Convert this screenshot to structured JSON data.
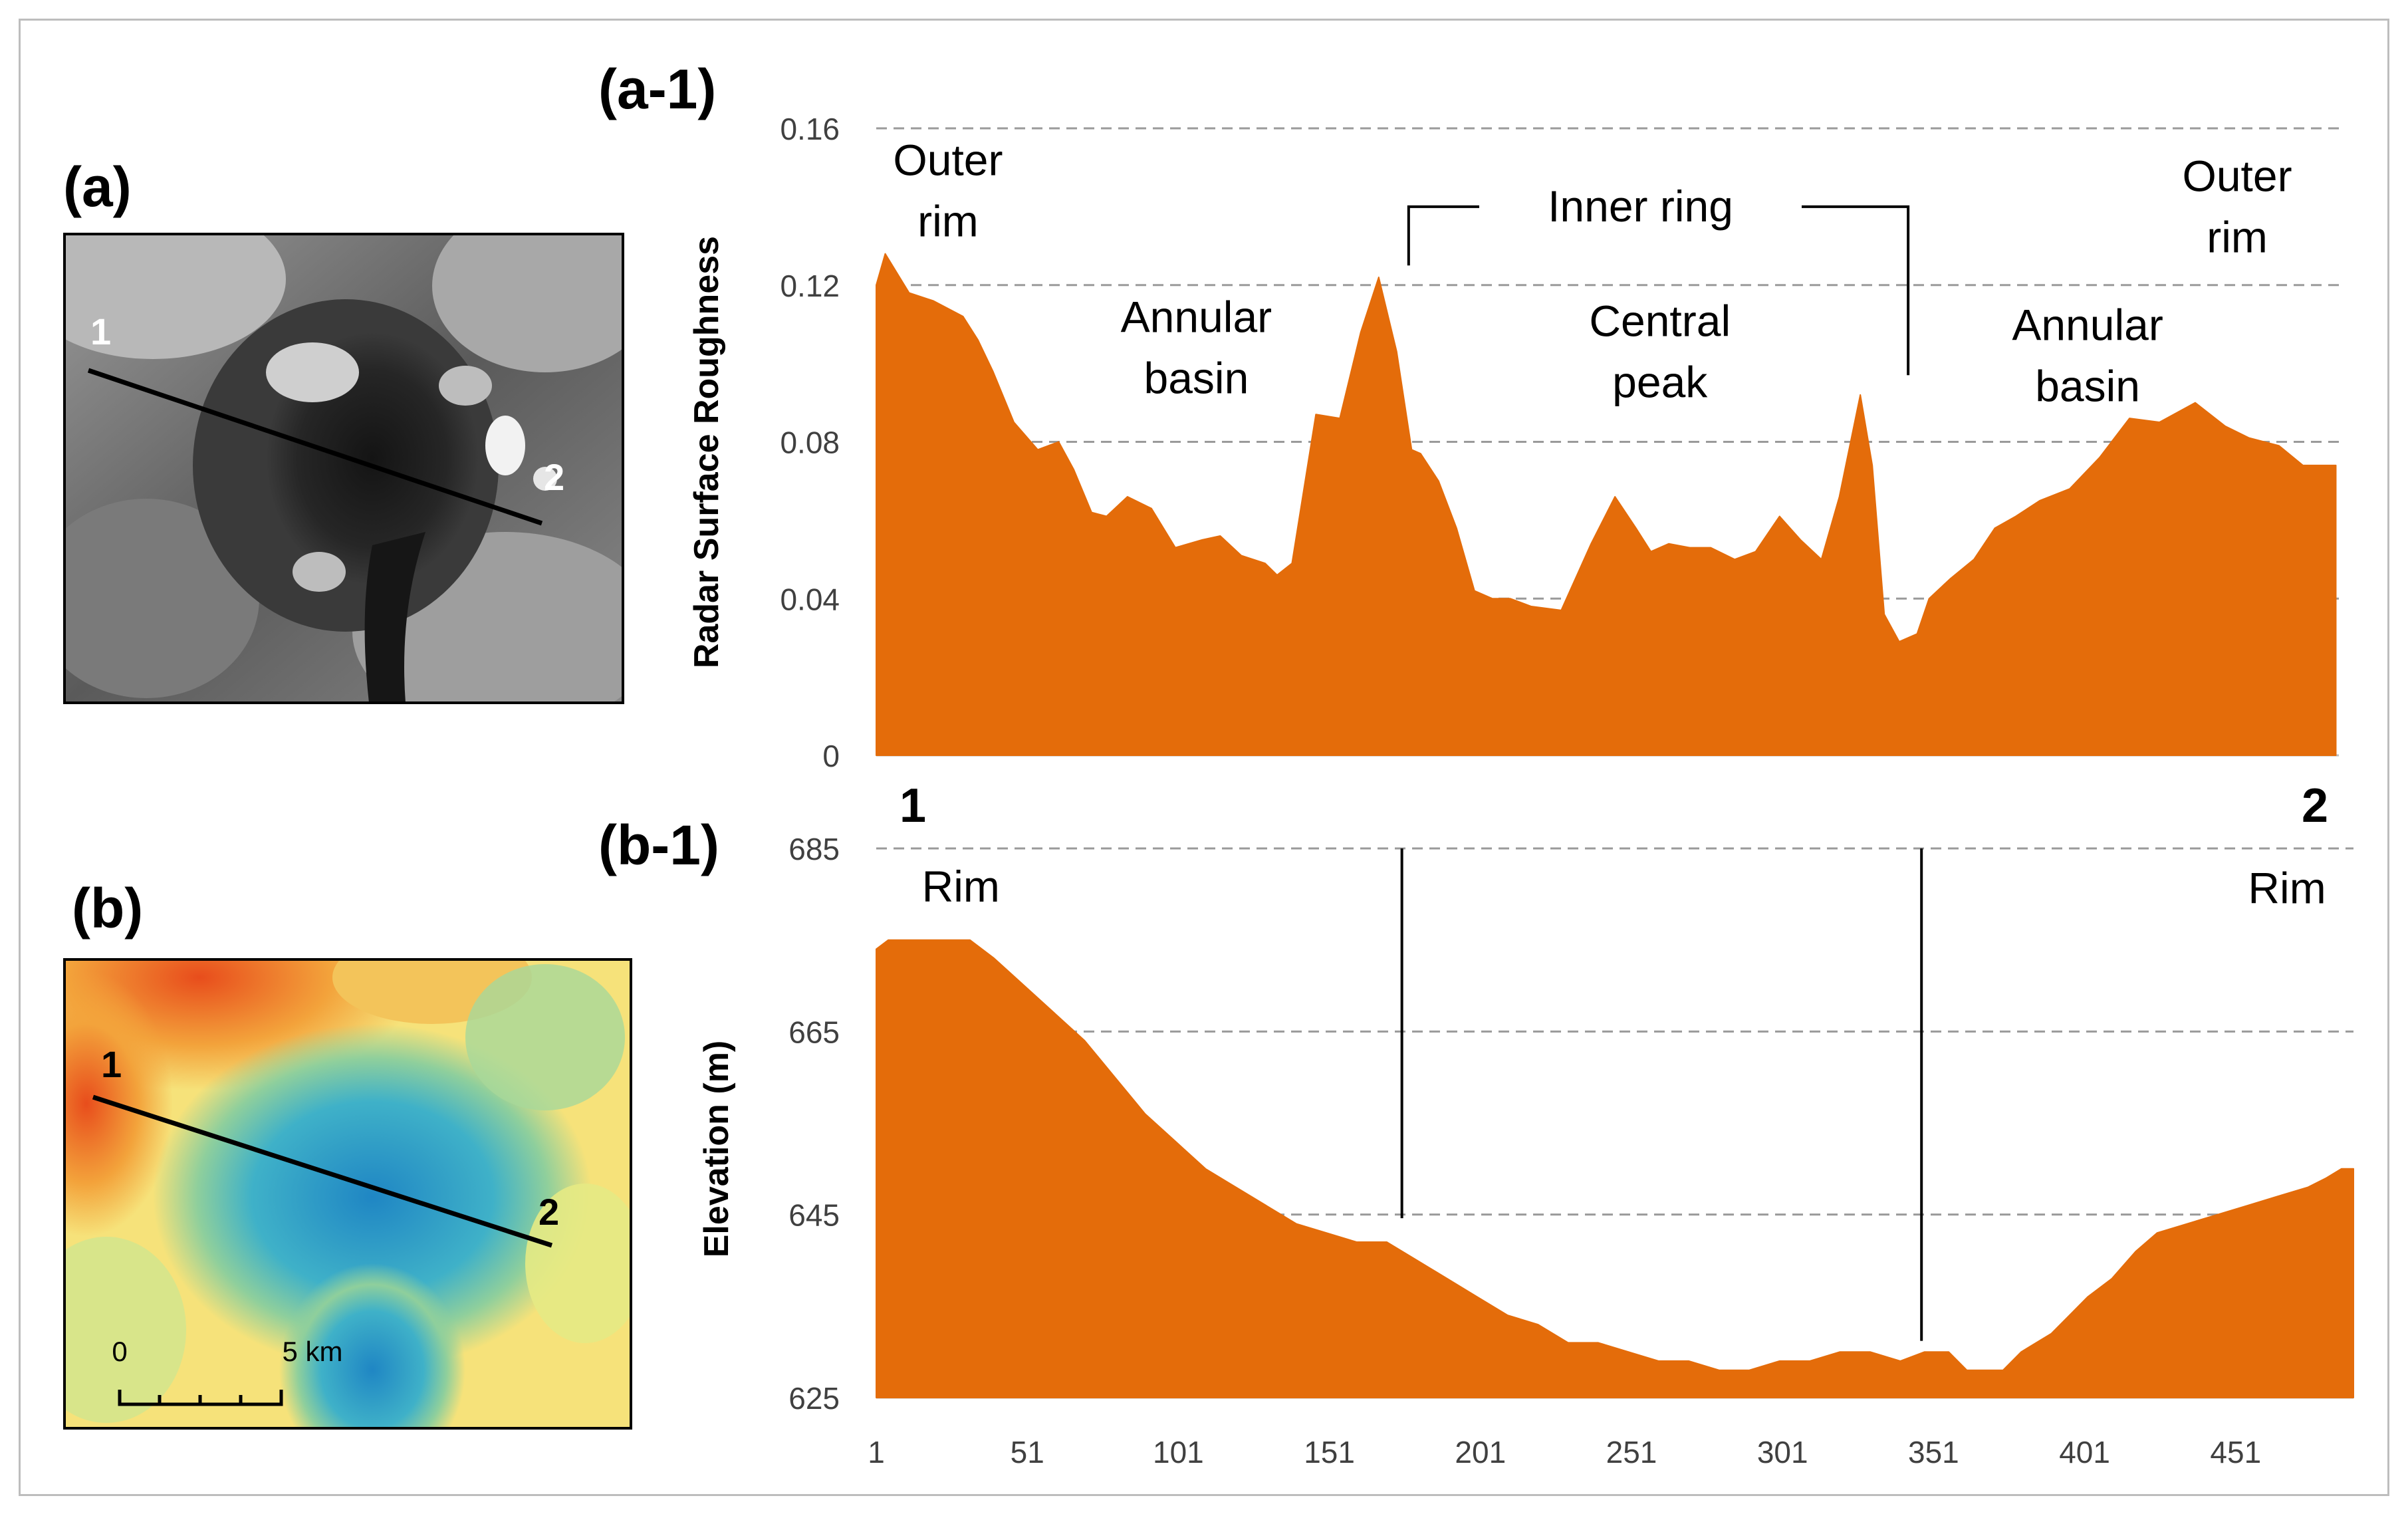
{
  "colors": {
    "area": "#e46c0a",
    "grid": "#9a9a9a",
    "elevation_ramp": [
      "#e84d1c",
      "#f3a33b",
      "#f6e27a",
      "#d8e58a",
      "#8fcf9c",
      "#3fb1c8",
      "#1f86c4"
    ]
  },
  "panels": {
    "a": {
      "label": "(a)",
      "point1": "1",
      "point2": "2"
    },
    "b": {
      "label": "(b)",
      "point1": "1",
      "point2": "2",
      "scale_zero": "0",
      "scale_end": "5 km"
    }
  },
  "chart_data": [
    {
      "panel": "(a-1)",
      "type": "area",
      "ylabel": "Radar Surface Roughness",
      "ylim": [
        0,
        0.16
      ],
      "yticks": [
        "0",
        "0.04",
        "0.08",
        "0.12",
        "0.16"
      ],
      "ytick_values": [
        0,
        0.04,
        0.08,
        0.12,
        0.16
      ],
      "grid": "dashed at 0.04, 0.08, 0.12, 0.16",
      "endpoint_start": "1",
      "endpoint_end": "2",
      "x": [
        1,
        4,
        12,
        20,
        30,
        35,
        40,
        47,
        55,
        62,
        67,
        73,
        78,
        85,
        93,
        101,
        110,
        116,
        123,
        131,
        135,
        140,
        148,
        156,
        163,
        169,
        175,
        180,
        183,
        189,
        195,
        201,
        207,
        213,
        220,
        230,
        240,
        248,
        255,
        260,
        266,
        273,
        280,
        288,
        295,
        303,
        310,
        317,
        323,
        330,
        334,
        338,
        343,
        349,
        353,
        360,
        368,
        375,
        382,
        390,
        400,
        410,
        420,
        430,
        442,
        452,
        460,
        470,
        478,
        489
      ],
      "values": [
        0.12,
        0.128,
        0.118,
        0.116,
        0.112,
        0.106,
        0.098,
        0.085,
        0.078,
        0.08,
        0.073,
        0.062,
        0.061,
        0.066,
        0.063,
        0.053,
        0.055,
        0.056,
        0.051,
        0.049,
        0.046,
        0.049,
        0.087,
        0.086,
        0.108,
        0.122,
        0.103,
        0.078,
        0.077,
        0.07,
        0.058,
        0.042,
        0.04,
        0.04,
        0.038,
        0.037,
        0.054,
        0.066,
        0.058,
        0.052,
        0.054,
        0.053,
        0.053,
        0.05,
        0.052,
        0.061,
        0.055,
        0.05,
        0.066,
        0.092,
        0.074,
        0.036,
        0.029,
        0.031,
        0.04,
        0.045,
        0.05,
        0.058,
        0.061,
        0.065,
        0.068,
        0.076,
        0.086,
        0.085,
        0.09,
        0.084,
        0.081,
        0.079,
        0.074,
        0.074
      ],
      "annotations": [
        {
          "text": [
            "Outer",
            "rim"
          ],
          "x": 25,
          "y": 0.148
        },
        {
          "text": [
            "Annular",
            "basin"
          ],
          "x": 108,
          "y": 0.108
        },
        {
          "text": [
            "Central",
            "peak"
          ],
          "x": 263,
          "y": 0.107
        },
        {
          "text": [
            "Annular",
            "basin"
          ],
          "x": 406,
          "y": 0.106
        },
        {
          "text": [
            "Outer",
            "rim"
          ],
          "x": 456,
          "y": 0.144
        }
      ],
      "inner_ring_label": "Inner ring",
      "inner_ring_x": [
        179,
        346
      ],
      "inner_ring_y": 0.14
    },
    {
      "panel": "(b-1)",
      "type": "area",
      "ylabel": "Elevation (m)",
      "ylim": [
        625,
        685
      ],
      "yticks": [
        "625",
        "645",
        "665",
        "685"
      ],
      "ytick_values": [
        625,
        645,
        665,
        685
      ],
      "xticks": [
        "1",
        "51",
        "101",
        "151",
        "201",
        "251",
        "301",
        "351",
        "401",
        "451"
      ],
      "xtick_values": [
        1,
        51,
        101,
        151,
        201,
        251,
        301,
        351,
        401,
        451
      ],
      "xlim": [
        1,
        490
      ],
      "grid": "dashed at 645, 665, 685",
      "x": [
        1,
        5,
        14,
        24,
        32,
        40,
        50,
        60,
        70,
        80,
        90,
        100,
        110,
        120,
        130,
        140,
        150,
        160,
        170,
        180,
        190,
        200,
        210,
        220,
        230,
        240,
        250,
        260,
        270,
        280,
        290,
        300,
        310,
        320,
        330,
        340,
        348,
        356,
        362,
        368,
        374,
        380,
        385,
        390,
        396,
        402,
        410,
        418,
        425,
        435,
        445,
        455,
        465,
        475,
        481,
        486,
        490
      ],
      "values": [
        674,
        675,
        675,
        675,
        675,
        673,
        670,
        667,
        664,
        660,
        656,
        653,
        650,
        648,
        646,
        644,
        643,
        642,
        642,
        640,
        638,
        636,
        634,
        633,
        631,
        631,
        630,
        629,
        629,
        628,
        628,
        629,
        629,
        630,
        630,
        629,
        630,
        630,
        628,
        628,
        628,
        630,
        631,
        632,
        634,
        636,
        638,
        641,
        643,
        644,
        645,
        646,
        647,
        648,
        649,
        650,
        650
      ],
      "annotations": [
        {
          "text": [
            "Rim"
          ],
          "x": 29,
          "y": 679.2
        },
        {
          "text": [
            "Rim"
          ],
          "x": 468,
          "y": 679.0
        }
      ],
      "ring_lines_x": [
        175,
        347
      ]
    }
  ]
}
